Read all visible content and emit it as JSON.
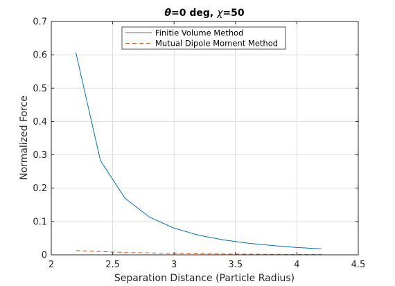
{
  "chart_data": {
    "type": "line",
    "title_symbol_theta": "θ",
    "title_part_1": "=0 deg, ",
    "title_symbol_chi": "χ",
    "title_part_2": "=50",
    "xlabel": "Separation Distance (Particle Radius)",
    "ylabel": "Normalized Force",
    "xlim": [
      2,
      4.5
    ],
    "ylim": [
      0,
      0.7
    ],
    "xticks": [
      "2",
      "2.5",
      "3",
      "3.5",
      "4",
      "4.5"
    ],
    "yticks": [
      "0",
      "0.1",
      "0.2",
      "0.3",
      "0.4",
      "0.5",
      "0.6",
      "0.7"
    ],
    "grid": true,
    "legend_position": "top",
    "series": [
      {
        "name": "Finitie Volume Method",
        "color": "#0072BD",
        "style": "solid",
        "x": [
          2.2,
          2.4,
          2.6,
          2.8,
          3.0,
          3.2,
          3.4,
          3.6,
          3.8,
          4.0,
          4.2
        ],
        "y": [
          0.607,
          0.283,
          0.17,
          0.113,
          0.08,
          0.059,
          0.045,
          0.035,
          0.028,
          0.022,
          0.018
        ]
      },
      {
        "name": "Mutual Dipole Moment Method",
        "color": "#D95319",
        "style": "dashed",
        "x": [
          2.2,
          2.4,
          2.6,
          2.8,
          3.0,
          3.2,
          3.4,
          3.6,
          3.8,
          4.0,
          4.2
        ],
        "y": [
          0.013,
          0.01,
          0.007,
          0.006,
          0.004,
          0.003,
          0.0025,
          0.002,
          0.0015,
          0.0012,
          0.001
        ]
      }
    ]
  }
}
